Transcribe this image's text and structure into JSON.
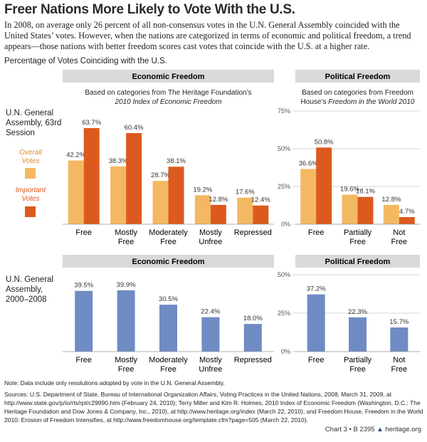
{
  "header": {
    "title": "Freer Nations More Likely to Vote With the U.S.",
    "intro": "In 2008, on average only 26 percent of all non-consensus votes in the U.N. General Assembly coincided with the United States’ votes. However, when the nations are categorized in terms of economic and political freedom, a trend appears—those nations with better freedom scores cast votes that coincide with the U.S. at a higher rate.",
    "measure": "Percentage of Votes Coinciding with the U.S."
  },
  "rows": [
    "U.N. General Assembly, 63rd Session",
    "U.N. General Assembly, 2000–2008"
  ],
  "chart_data": [
    {
      "type": "bar",
      "title": "Economic Freedom",
      "subtitle": [
        "Based on categories from The Heritage Foundation’s",
        "2010 Index of Economic Freedom"
      ],
      "categories": [
        "Free",
        "Mostly Free",
        "Moderately Free",
        "Mostly Unfree",
        "Repressed"
      ],
      "series": [
        {
          "name": "Overall Votes",
          "color": "#f4b862",
          "values": [
            42.2,
            38.3,
            28.7,
            19.2,
            17.6
          ],
          "value_labels": [
            "42.2%",
            "38.3%",
            "28.7%",
            "19.2%",
            "17.6%"
          ]
        },
        {
          "name": "Important Votes",
          "color": "#dc5a1d",
          "values": [
            63.7,
            60.4,
            38.1,
            12.8,
            12.4
          ],
          "value_labels": [
            "63.7%",
            "60.4%",
            "38.1%",
            "12.8%",
            "12.4%"
          ]
        }
      ],
      "ylim": [
        0,
        75
      ]
    },
    {
      "type": "bar",
      "title": "Political Freedom",
      "subtitle": [
        "Based on categories from Freedom House’s",
        "Freedom in the World 2010"
      ],
      "categories": [
        "Free",
        "Partially Free",
        "Not Free"
      ],
      "series": [
        {
          "name": "Overall Votes",
          "color": "#f4b862",
          "values": [
            36.6,
            19.6,
            12.8
          ],
          "value_labels": [
            "36.6%",
            "19.6%",
            "12.8%"
          ]
        },
        {
          "name": "Important Votes",
          "color": "#dc5a1d",
          "values": [
            50.8,
            18.1,
            4.7
          ],
          "value_labels": [
            "50.8%",
            "18.1%",
            "4.7%"
          ]
        }
      ],
      "ylim": [
        0,
        75
      ],
      "yticks": [
        {
          "value": 0,
          "label": "0%"
        },
        {
          "value": 25,
          "label": "25%"
        },
        {
          "value": 50,
          "label": "50%"
        },
        {
          "value": 75,
          "label": "75%"
        }
      ],
      "grid": true
    },
    {
      "type": "bar",
      "title": "Economic Freedom",
      "categories": [
        "Free",
        "Mostly Free",
        "Moderately Free",
        "Mostly Unfree",
        "Repressed"
      ],
      "series": [
        {
          "color": "#6f8bc4",
          "values": [
            39.5,
            39.9,
            30.5,
            22.4,
            18.0
          ],
          "value_labels": [
            "39.5%",
            "39.9%",
            "30.5%",
            "22.4%",
            "18.0%"
          ]
        }
      ],
      "ylim": [
        0,
        50
      ]
    },
    {
      "type": "bar",
      "title": "Political Freedom",
      "categories": [
        "Free",
        "Partially Free",
        "Not Free"
      ],
      "series": [
        {
          "color": "#6f8bc4",
          "values": [
            37.2,
            22.3,
            15.7
          ],
          "value_labels": [
            "37.2%",
            "22.3%",
            "15.7%"
          ]
        }
      ],
      "ylim": [
        0,
        50
      ],
      "yticks": [
        {
          "value": 0,
          "label": "0%"
        },
        {
          "value": 25,
          "label": "25%"
        },
        {
          "value": 50,
          "label": "50%"
        }
      ],
      "grid": true
    }
  ],
  "footer": {
    "note": "Note: Data include only resolutions adopted by vote in the U.N. General Assembly.",
    "sources": "Sources: U.S. Department of State, Bureau of International Organization Affairs, Voting Practices in the United Nations, 2008, March 31, 2009, at http://www.state.gov/p/io/rls/rpt/c29990.htm (February 24, 2010); Terry Miller and Kim R. Holmes, 2010 Index of Economic Freedom (Washington, D.C.: The Heritage Foundation and Dow Jones & Company, Inc., 2010), at http://www.heritage.org/index (March 22, 2010); and Freedom House, Freedom in the World 2010: Erosion of Freedom Intensifies, at http://www.freedomhouse.org/template.cfm?page=505 (March 22, 2010).",
    "chart_id": "Chart 3 • B 2395",
    "site": "heritage.org"
  }
}
